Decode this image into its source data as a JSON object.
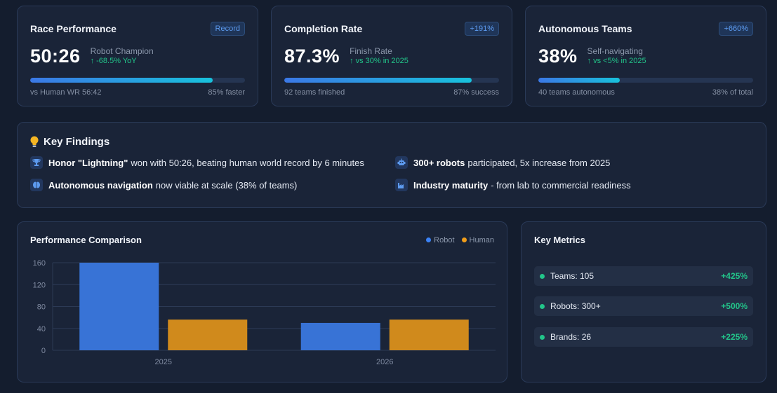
{
  "kpis": [
    {
      "title": "Race Performance",
      "badge": "Record",
      "value": "50:26",
      "sub_label": "Robot Champion",
      "sub_trend": "↑ -68.5% YoY",
      "progress": 0.85,
      "foot_left": "vs Human WR 56:42",
      "foot_right": "85% faster"
    },
    {
      "title": "Completion Rate",
      "badge": "+191%",
      "value": "87.3%",
      "sub_label": "Finish Rate",
      "sub_trend": "↑ vs 30% in 2025",
      "progress": 0.873,
      "foot_left": "92 teams finished",
      "foot_right": "87% success"
    },
    {
      "title": "Autonomous Teams",
      "badge": "+660%",
      "value": "38%",
      "sub_label": "Self-navigating",
      "sub_trend": "↑ vs <5% in 2025",
      "progress": 0.38,
      "foot_left": "40 teams autonomous",
      "foot_right": "38% of total"
    }
  ],
  "findings": {
    "title": "Key Findings",
    "items": [
      {
        "icon": "trophy-icon",
        "bold": "Honor \"Lightning\"",
        "text": "won with 50:26, beating human world record by 6 minutes"
      },
      {
        "icon": "robot-icon",
        "bold": "300+ robots",
        "text": "participated, 5x increase from 2025"
      },
      {
        "icon": "brain-icon",
        "bold": "Autonomous navigation",
        "text": "now viable at scale (38% of teams)"
      },
      {
        "icon": "factory-icon",
        "bold": "Industry maturity",
        "text": "- from lab to commercial readiness"
      }
    ]
  },
  "chart_title": "Performance Comparison",
  "chart_data": {
    "type": "bar",
    "categories": [
      "2025",
      "2026"
    ],
    "series": [
      {
        "name": "Robot",
        "values": [
          160,
          50
        ],
        "color": "#3873d6"
      },
      {
        "name": "Human",
        "values": [
          56,
          56
        ],
        "color": "#d08a1c"
      }
    ],
    "yticks": [
      0,
      40,
      80,
      120,
      160
    ],
    "ylim": [
      0,
      160
    ],
    "legend": "top-right",
    "grid": true
  },
  "metrics": {
    "title": "Key Metrics",
    "items": [
      {
        "label": "Teams: 105",
        "change": "+425%"
      },
      {
        "label": "Robots: 300+",
        "change": "+500%"
      },
      {
        "label": "Brands: 26",
        "change": "+225%"
      }
    ]
  },
  "colors": {
    "accent": "#3b78e6",
    "positive": "#22c58a",
    "background": "#141d2e",
    "card": "#1a2438"
  }
}
